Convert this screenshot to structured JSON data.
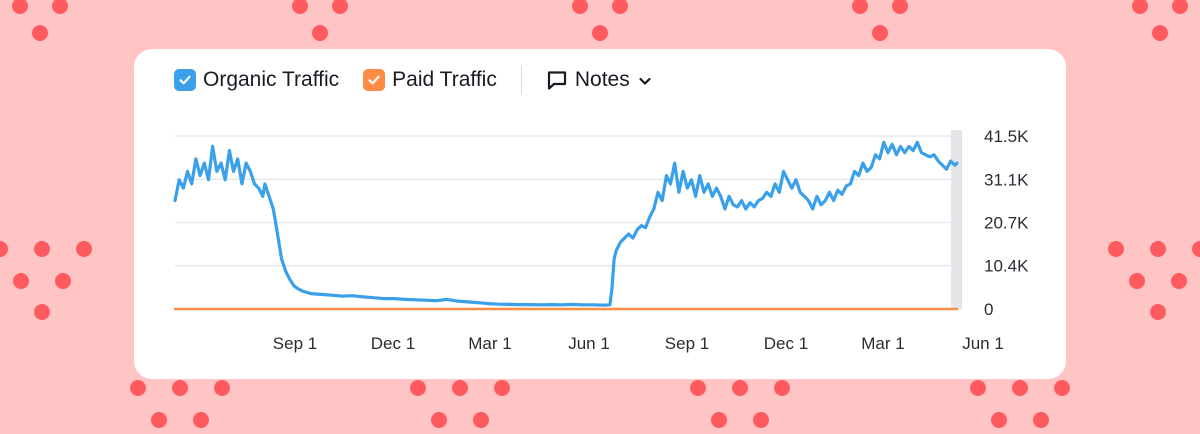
{
  "legend": {
    "organic_label": "Organic Traffic",
    "paid_label": "Paid Traffic",
    "notes_label": "Notes",
    "organic_checked": true,
    "paid_checked": true
  },
  "colors": {
    "background": "#ffc5c5",
    "dots": "#ff5a5f",
    "organic": "#3aa0ea",
    "paid": "#ff8c42",
    "grid": "#e3e4e8"
  },
  "icons": {
    "organic_checkbox": "check-icon",
    "paid_checkbox": "check-icon",
    "notes": "speech-bubble-icon",
    "notes_toggle": "chevron-down-icon"
  },
  "chart_data": {
    "type": "line",
    "x_tick_labels": [
      "Sep 1",
      "Dec 1",
      "Mar 1",
      "Jun 1",
      "Sep 1",
      "Dec 1",
      "Mar 1",
      "Jun 1"
    ],
    "y_tick_labels": [
      "41.5K",
      "31.1K",
      "20.7K",
      "10.4K",
      "0"
    ],
    "y_ticks": [
      41500,
      31100,
      20700,
      10400,
      0
    ],
    "ylim": [
      0,
      41500
    ],
    "grid": true,
    "axis_position": "right",
    "series": [
      {
        "name": "Organic Traffic",
        "color": "#3aa0ea",
        "points": [
          [
            0,
            26000
          ],
          [
            2,
            31000
          ],
          [
            4,
            29000
          ],
          [
            6,
            33000
          ],
          [
            8,
            30000
          ],
          [
            10,
            36000
          ],
          [
            12,
            32000
          ],
          [
            14,
            35000
          ],
          [
            16,
            31000
          ],
          [
            18,
            39000
          ],
          [
            20,
            33000
          ],
          [
            22,
            35000
          ],
          [
            24,
            31000
          ],
          [
            26,
            38000
          ],
          [
            28,
            33000
          ],
          [
            30,
            36000
          ],
          [
            32,
            30000
          ],
          [
            34,
            35000
          ],
          [
            36,
            33000
          ],
          [
            38,
            30000
          ],
          [
            40,
            29000
          ],
          [
            42,
            27000
          ],
          [
            43,
            30000
          ],
          [
            45,
            27000
          ],
          [
            47,
            24000
          ],
          [
            49,
            18000
          ],
          [
            51,
            12000
          ],
          [
            53,
            9000
          ],
          [
            55,
            7000
          ],
          [
            57,
            5500
          ],
          [
            59,
            4800
          ],
          [
            61,
            4300
          ],
          [
            65,
            3700
          ],
          [
            70,
            3500
          ],
          [
            75,
            3300
          ],
          [
            80,
            3100
          ],
          [
            85,
            3200
          ],
          [
            90,
            2900
          ],
          [
            95,
            2700
          ],
          [
            100,
            2500
          ],
          [
            105,
            2500
          ],
          [
            110,
            2300
          ],
          [
            115,
            2200
          ],
          [
            120,
            2100
          ],
          [
            125,
            2000
          ],
          [
            130,
            2300
          ],
          [
            135,
            1900
          ],
          [
            140,
            1700
          ],
          [
            145,
            1500
          ],
          [
            150,
            1300
          ],
          [
            155,
            1150
          ],
          [
            160,
            1100
          ],
          [
            165,
            1050
          ],
          [
            170,
            1050
          ],
          [
            175,
            1000
          ],
          [
            180,
            1050
          ],
          [
            185,
            1000
          ],
          [
            190,
            1100
          ],
          [
            195,
            1000
          ],
          [
            200,
            1000
          ],
          [
            205,
            900
          ],
          [
            208,
            1000
          ],
          [
            209,
            5000
          ],
          [
            210,
            12000
          ],
          [
            211,
            14000
          ],
          [
            213,
            16000
          ],
          [
            215,
            17000
          ],
          [
            217,
            18000
          ],
          [
            219,
            17000
          ],
          [
            221,
            19000
          ],
          [
            223,
            20000
          ],
          [
            225,
            19500
          ],
          [
            227,
            22000
          ],
          [
            229,
            24000
          ],
          [
            231,
            28000
          ],
          [
            233,
            26000
          ],
          [
            235,
            32000
          ],
          [
            237,
            30000
          ],
          [
            239,
            35000
          ],
          [
            241,
            28000
          ],
          [
            243,
            33000
          ],
          [
            245,
            29000
          ],
          [
            247,
            31000
          ],
          [
            249,
            27000
          ],
          [
            251,
            32000
          ],
          [
            253,
            28000
          ],
          [
            255,
            30000
          ],
          [
            257,
            27000
          ],
          [
            259,
            29000
          ],
          [
            261,
            27000
          ],
          [
            263,
            24000
          ],
          [
            265,
            27000
          ],
          [
            267,
            25000
          ],
          [
            269,
            24500
          ],
          [
            271,
            26000
          ],
          [
            273,
            24000
          ],
          [
            275,
            25500
          ],
          [
            277,
            24500
          ],
          [
            279,
            26000
          ],
          [
            281,
            26500
          ],
          [
            283,
            28000
          ],
          [
            285,
            27000
          ],
          [
            287,
            30000
          ],
          [
            289,
            28000
          ],
          [
            291,
            33000
          ],
          [
            293,
            31000
          ],
          [
            295,
            29000
          ],
          [
            297,
            31000
          ],
          [
            299,
            28000
          ],
          [
            301,
            27000
          ],
          [
            303,
            26000
          ],
          [
            305,
            24000
          ],
          [
            307,
            27000
          ],
          [
            309,
            25000
          ],
          [
            311,
            26000
          ],
          [
            313,
            28000
          ],
          [
            315,
            26000
          ],
          [
            317,
            28500
          ],
          [
            319,
            27500
          ],
          [
            321,
            29500
          ],
          [
            323,
            30000
          ],
          [
            325,
            33000
          ],
          [
            327,
            32000
          ],
          [
            329,
            35000
          ],
          [
            331,
            33000
          ],
          [
            333,
            34000
          ],
          [
            335,
            37000
          ],
          [
            337,
            36000
          ],
          [
            339,
            40000
          ],
          [
            341,
            37500
          ],
          [
            343,
            39500
          ],
          [
            345,
            37000
          ],
          [
            347,
            39000
          ],
          [
            349,
            37500
          ],
          [
            351,
            39000
          ],
          [
            353,
            38000
          ],
          [
            355,
            40000
          ],
          [
            357,
            37500
          ],
          [
            359,
            37000
          ],
          [
            361,
            36500
          ],
          [
            363,
            37000
          ],
          [
            365,
            35500
          ],
          [
            367,
            34500
          ],
          [
            369,
            33500
          ],
          [
            371,
            35500
          ],
          [
            373,
            34500
          ],
          [
            374,
            35000
          ]
        ]
      },
      {
        "name": "Paid Traffic",
        "color": "#ff8c42",
        "points": [
          [
            0,
            0
          ],
          [
            374,
            0
          ]
        ]
      }
    ]
  }
}
